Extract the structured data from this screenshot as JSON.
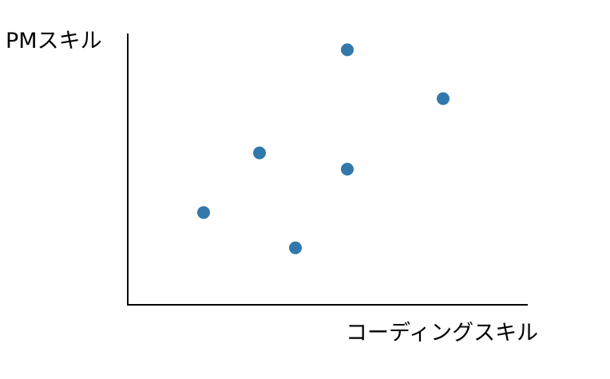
{
  "chart_data": {
    "type": "scatter",
    "title": "",
    "xlabel": "コーディングスキル",
    "ylabel": "PMスキル",
    "xlim": [
      0,
      100
    ],
    "ylim": [
      0,
      100
    ],
    "grid": false,
    "colors": {
      "point": "#3278ab",
      "axis": "#000000"
    },
    "points": [
      {
        "x": 19,
        "y": 34
      },
      {
        "x": 33,
        "y": 56
      },
      {
        "x": 42,
        "y": 21
      },
      {
        "x": 55,
        "y": 50
      },
      {
        "x": 55,
        "y": 94
      },
      {
        "x": 79,
        "y": 76
      }
    ]
  }
}
